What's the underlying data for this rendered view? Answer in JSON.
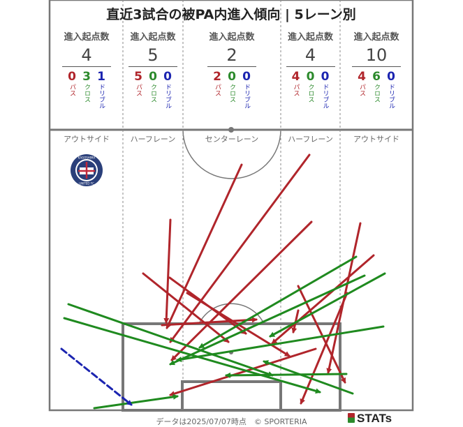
{
  "title": "直近3試合の被PA内進入傾向 | 5レーン別",
  "stat_header": "進入起点数",
  "type_labels": {
    "pass": "パス",
    "cross": "クロス",
    "dribble": "ドリブル"
  },
  "lanes": [
    {
      "name": "アウトサイド",
      "total": "4",
      "pass": "0",
      "cross": "3",
      "dribble": "1"
    },
    {
      "name": "ハーフレーン",
      "total": "5",
      "pass": "5",
      "cross": "0",
      "dribble": "0"
    },
    {
      "name": "センターレーン",
      "total": "2",
      "pass": "2",
      "cross": "0",
      "dribble": "0"
    },
    {
      "name": "ハーフレーン",
      "total": "4",
      "pass": "4",
      "cross": "0",
      "dribble": "0"
    },
    {
      "name": "アウトサイド",
      "total": "10",
      "pass": "4",
      "cross": "6",
      "dribble": "0"
    }
  ],
  "team_logo": {
    "text_top": "KAGOSHIMA",
    "text_bottom": "UNITED FC"
  },
  "footer": "データは2025/07/07時点　© SPORTERIA",
  "brand": "STATs",
  "colors": {
    "pass": "#b0252b",
    "cross": "#1f8a1f",
    "dribble": "#1b24b0",
    "pitch_line": "#777777"
  }
}
